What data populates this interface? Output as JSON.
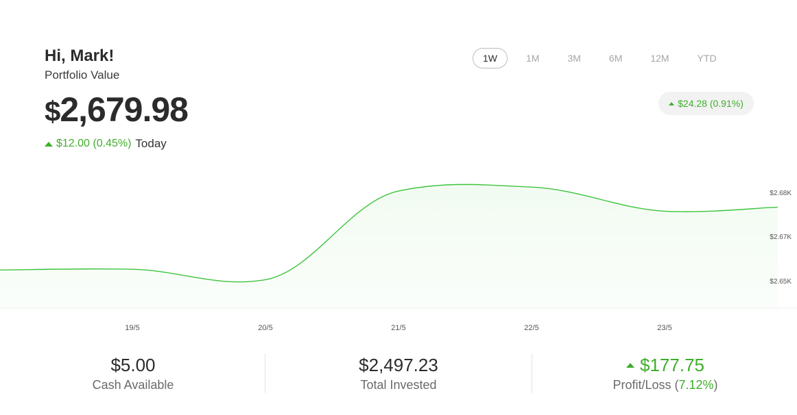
{
  "header": {
    "greeting": "Hi, Mark!",
    "portfolio_label": "Portfolio Value",
    "currency_symbol": "$",
    "portfolio_value": "2,679.98",
    "today_change": "$12.00 (0.45%)",
    "today_label": "Today"
  },
  "ranges": [
    {
      "label": "1W",
      "active": true
    },
    {
      "label": "1M",
      "active": false
    },
    {
      "label": "3M",
      "active": false
    },
    {
      "label": "6M",
      "active": false
    },
    {
      "label": "12M",
      "active": false
    },
    {
      "label": "YTD",
      "active": false
    }
  ],
  "period_change": "$24.28 (0.91%)",
  "stats": {
    "cash_value": "$5.00",
    "cash_label": "Cash Available",
    "invested_value": "$2,497.23",
    "invested_label": "Total Invested",
    "pl_value": "$177.75",
    "pl_label": "Profit/Loss",
    "pl_pct": "7.12%"
  },
  "colors": {
    "accent_green": "#3fae2a",
    "line": "#3cc43c"
  },
  "chart_data": {
    "type": "area",
    "title": "",
    "xlabel": "",
    "ylabel": "",
    "x_ticks": [
      "19/5",
      "20/5",
      "21/5",
      "22/5",
      "23/5"
    ],
    "y_ticks": [
      "$2.68K",
      "$2.67K",
      "$2.65K"
    ],
    "ylim": [
      2645,
      2683
    ],
    "x": [
      18.0,
      19.0,
      20.0,
      21.0,
      22.0,
      23.0,
      23.85
    ],
    "values": [
      2655.6,
      2655.8,
      2652.9,
      2677.5,
      2678.6,
      2671.9,
      2673.0
    ],
    "grid": false,
    "legend": "none"
  }
}
